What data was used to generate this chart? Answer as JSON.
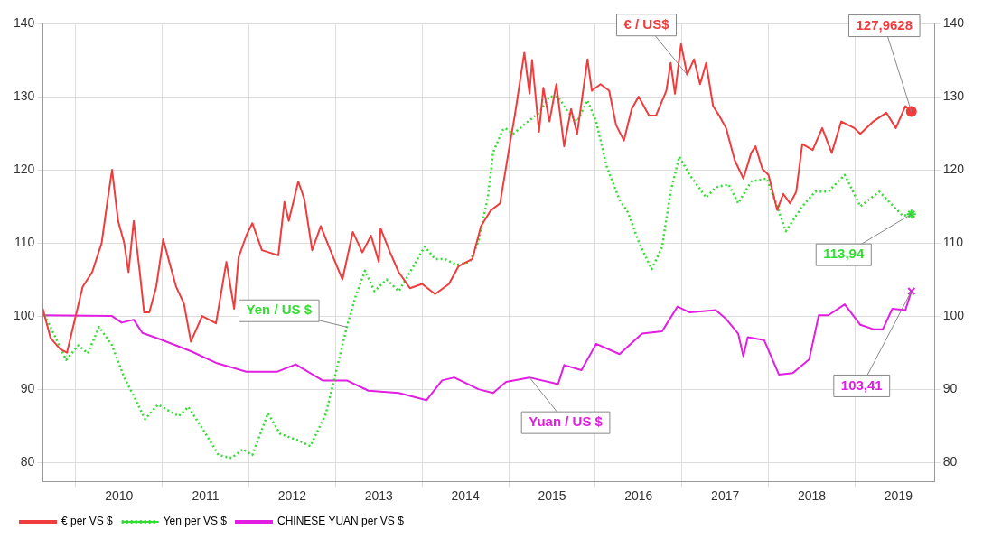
{
  "chart_data": {
    "type": "line",
    "xlim": [
      2009.62,
      2019.92
    ],
    "xticks": [
      {
        "value": 2010,
        "label": null
      },
      {
        "value": 2010.5,
        "label": "2010"
      },
      {
        "value": 2011,
        "label": null
      },
      {
        "value": 2011.5,
        "label": "2011"
      },
      {
        "value": 2012,
        "label": null
      },
      {
        "value": 2012.5,
        "label": "2012"
      },
      {
        "value": 2013,
        "label": null
      },
      {
        "value": 2013.5,
        "label": "2013"
      },
      {
        "value": 2014,
        "label": null
      },
      {
        "value": 2014.5,
        "label": "2014"
      },
      {
        "value": 2015,
        "label": null
      },
      {
        "value": 2015.5,
        "label": "2015"
      },
      {
        "value": 2016,
        "label": null
      },
      {
        "value": 2016.5,
        "label": "2016"
      },
      {
        "value": 2017,
        "label": null
      },
      {
        "value": 2017.5,
        "label": "2017"
      },
      {
        "value": 2018,
        "label": null
      },
      {
        "value": 2018.5,
        "label": "2018"
      },
      {
        "value": 2019,
        "label": null
      },
      {
        "value": 2019.5,
        "label": "2019"
      }
    ],
    "ylim": [
      77.4,
      140
    ],
    "yticks": [
      80,
      90,
      100,
      110,
      120,
      130,
      140
    ],
    "y2lim": [
      77.4,
      140
    ],
    "y2ticks": [
      80,
      90,
      100,
      110,
      120,
      130,
      140
    ],
    "grid": true,
    "legend": "bottom left",
    "series": [
      {
        "name": "€ per VS $",
        "color": "#f03c3c",
        "line_style": "solid",
        "x": [
          2009.62,
          2009.71,
          2009.82,
          2009.9,
          2010.0,
          2010.08,
          2010.19,
          2010.3,
          2010.37,
          2010.42,
          2010.49,
          2010.56,
          2010.61,
          2010.67,
          2010.74,
          2010.79,
          2010.85,
          2010.93,
          2010.98,
          2011.01,
          2011.09,
          2011.16,
          2011.25,
          2011.33,
          2011.46,
          2011.62,
          2011.74,
          2011.83,
          2011.88,
          2011.97,
          2012.04,
          2012.15,
          2012.34,
          2012.41,
          2012.46,
          2012.57,
          2012.64,
          2012.73,
          2012.83,
          2012.94,
          2013.08,
          2013.2,
          2013.31,
          2013.41,
          2013.5,
          2013.52,
          2013.63,
          2013.73,
          2013.86,
          2014.0,
          2014.15,
          2014.31,
          2014.42,
          2014.58,
          2014.68,
          2014.79,
          2014.9,
          2015.02,
          2015.07,
          2015.18,
          2015.24,
          2015.27,
          2015.35,
          2015.4,
          2015.47,
          2015.55,
          2015.64,
          2015.72,
          2015.79,
          2015.91,
          2015.96,
          2016.06,
          2016.16,
          2016.24,
          2016.33,
          2016.42,
          2016.5,
          2016.62,
          2016.7,
          2016.82,
          2016.87,
          2016.92,
          2016.99,
          2017.06,
          2017.14,
          2017.21,
          2017.28,
          2017.36,
          2017.43,
          2017.51,
          2017.61,
          2017.71,
          2017.8,
          2017.85,
          2017.93,
          2018.0,
          2018.1,
          2018.17,
          2018.25,
          2018.32,
          2018.39,
          2018.51,
          2018.62,
          2018.73,
          2018.84,
          2018.99,
          2019.06,
          2019.21,
          2019.36,
          2019.47,
          2019.58,
          2019.65
        ],
        "values": [
          101,
          97,
          95.5,
          95,
          100,
          104,
          106,
          110,
          116,
          120,
          113,
          110,
          106,
          113,
          106,
          100.5,
          100.5,
          104,
          108,
          110.5,
          107,
          104,
          101.7,
          96.5,
          100,
          99,
          107.4,
          101,
          108,
          111,
          112.7,
          109,
          108.3,
          115.6,
          113,
          118.4,
          116,
          109,
          112.3,
          109,
          105,
          111.5,
          108.7,
          111,
          107.4,
          112,
          108.7,
          106,
          103.8,
          104.4,
          103,
          104.4,
          106.8,
          107.8,
          112.3,
          114.4,
          115.4,
          124,
          127.4,
          136,
          130.4,
          135,
          125.2,
          131.2,
          126.6,
          131.7,
          123.2,
          128.3,
          124.9,
          135.1,
          130.8,
          131.7,
          130.8,
          126.1,
          124,
          128.3,
          130,
          127.4,
          127.4,
          130.8,
          134.6,
          130.4,
          137.2,
          133,
          135.1,
          131.7,
          134.6,
          128.7,
          127.4,
          125.7,
          121.3,
          118.8,
          122.3,
          123.2,
          120.1,
          119.3,
          114.5,
          116.7,
          115.4,
          117,
          123.5,
          122.7,
          125.7,
          122.3,
          126.6,
          125.7,
          124.9,
          126.6,
          127.8,
          125.7,
          128.7,
          127.96
        ]
      },
      {
        "name": "Yen per VS $",
        "color": "#33dd33",
        "line_style": "dotted",
        "x": [
          2009.62,
          2009.89,
          2010.03,
          2010.14,
          2010.27,
          2010.42,
          2010.56,
          2010.67,
          2010.8,
          2010.95,
          2011.19,
          2011.3,
          2011.48,
          2011.65,
          2011.8,
          2011.93,
          2012.04,
          2012.22,
          2012.36,
          2012.57,
          2012.71,
          2012.89,
          2012.99,
          2013.13,
          2013.23,
          2013.34,
          2013.45,
          2013.59,
          2013.73,
          2013.87,
          2014.03,
          2014.15,
          2014.26,
          2014.4,
          2014.55,
          2014.65,
          2014.76,
          2014.82,
          2014.93,
          2014.96,
          2015.05,
          2015.17,
          2015.35,
          2015.47,
          2015.57,
          2015.69,
          2015.79,
          2015.91,
          2016.01,
          2016.13,
          2016.28,
          2016.38,
          2016.5,
          2016.65,
          2016.77,
          2016.87,
          2016.97,
          2017.09,
          2017.28,
          2017.39,
          2017.54,
          2017.65,
          2017.8,
          2017.98,
          2018.1,
          2018.2,
          2018.39,
          2018.54,
          2018.69,
          2018.88,
          2019.06,
          2019.28,
          2019.55,
          2019.65
        ],
        "values": [
          100.7,
          94,
          96,
          94.9,
          98.5,
          96,
          91.6,
          89.1,
          85.9,
          87.9,
          86.3,
          87.6,
          84.3,
          81,
          80.6,
          81.8,
          81,
          86.7,
          83.9,
          83,
          82.2,
          86.7,
          91.6,
          98.5,
          102.6,
          106.2,
          103.4,
          105,
          103.4,
          106.2,
          109.5,
          107.8,
          107.8,
          107,
          107.4,
          110.2,
          116.3,
          122.4,
          125.4,
          125.7,
          124.9,
          126.1,
          127.8,
          130,
          130,
          127.8,
          126.6,
          129.5,
          126.6,
          120.5,
          115.9,
          114.1,
          110.2,
          106.4,
          109.4,
          117,
          121.8,
          119.3,
          116.2,
          117.6,
          118,
          115.4,
          118.4,
          118.8,
          115,
          111.6,
          115,
          117,
          117,
          119.3,
          115,
          117,
          113.7,
          113.94
        ]
      },
      {
        "name": "CHINESE YUAN per VS $",
        "color": "#e21ee2",
        "line_style": "solid",
        "x": [
          2009.62,
          2010.42,
          2010.53,
          2010.67,
          2010.77,
          2010.98,
          2011.33,
          2011.62,
          2011.97,
          2012.33,
          2012.54,
          2012.85,
          2013.13,
          2013.38,
          2013.73,
          2014.05,
          2014.23,
          2014.37,
          2014.65,
          2014.82,
          2014.97,
          2015.24,
          2015.57,
          2015.64,
          2015.84,
          2016.01,
          2016.28,
          2016.54,
          2016.77,
          2016.95,
          2017.09,
          2017.39,
          2017.51,
          2017.65,
          2017.71,
          2017.76,
          2017.95,
          2018.12,
          2018.28,
          2018.47,
          2018.58,
          2018.69,
          2018.88,
          2019.06,
          2019.21,
          2019.32,
          2019.43,
          2019.58,
          2019.65
        ],
        "values": [
          100.1,
          100,
          99.1,
          99.5,
          97.7,
          96.8,
          95.2,
          93.6,
          92.4,
          92.4,
          93.4,
          91.2,
          91.2,
          89.8,
          89.5,
          88.5,
          91.2,
          91.6,
          90,
          89.5,
          91,
          91.6,
          90.7,
          93.3,
          92.6,
          96.2,
          94.8,
          97.6,
          97.9,
          101.3,
          100.5,
          100.8,
          99.6,
          97.6,
          94.5,
          97.1,
          96.7,
          92,
          92.2,
          94.1,
          100.1,
          100.1,
          101.6,
          98.8,
          98.2,
          98.2,
          101,
          100.8,
          103.41
        ]
      }
    ],
    "annotations": [
      {
        "text": "€ / US$",
        "x": 2017.06,
        "y": 133
      },
      {
        "text": "127,9628",
        "x": 2019.65,
        "y": 127.96
      },
      {
        "text": "113,94",
        "x": 2019.65,
        "y": 113.94
      },
      {
        "text": "103,41",
        "x": 2019.65,
        "y": 103.41
      },
      {
        "text": "Yen / US $",
        "x": 2013.13,
        "y": 98.5
      },
      {
        "text": "Yuan / US $",
        "x": 2015.24,
        "y": 91.6
      }
    ]
  }
}
